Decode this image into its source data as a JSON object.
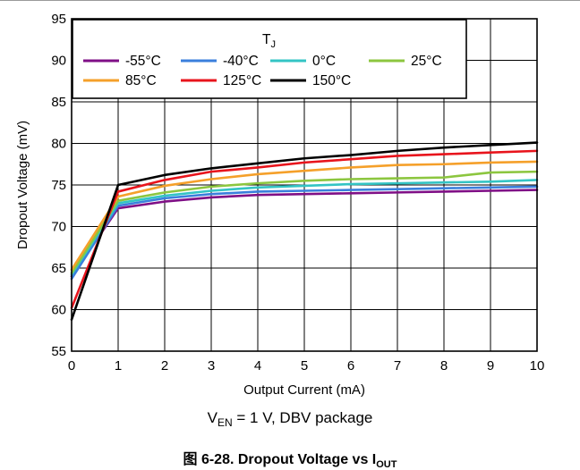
{
  "chart_data": {
    "type": "line",
    "xlabel": "Output Current (mA)",
    "ylabel": "Dropout Voltage (mV)",
    "xlim": [
      0,
      10
    ],
    "ylim": [
      55,
      95
    ],
    "x_ticks": [
      0,
      1,
      2,
      3,
      4,
      5,
      6,
      7,
      8,
      9,
      10
    ],
    "y_ticks": [
      55,
      60,
      65,
      70,
      75,
      80,
      85,
      90,
      95
    ],
    "grid": true,
    "legend": {
      "title_main": "T",
      "title_sub": "J",
      "placement": "top-left, inside plot",
      "columns": 4
    },
    "series": [
      {
        "name": "-55°C",
        "color": "#7f0f86",
        "x": [
          0,
          1,
          2,
          3,
          4,
          5,
          6,
          7,
          8,
          9,
          10
        ],
        "y": [
          64.0,
          72.2,
          73.0,
          73.5,
          73.8,
          73.9,
          74.0,
          74.1,
          74.2,
          74.3,
          74.4
        ]
      },
      {
        "name": "-40°C",
        "color": "#3a7fdc",
        "x": [
          0,
          1,
          2,
          3,
          4,
          5,
          6,
          7,
          8,
          9,
          10
        ],
        "y": [
          63.7,
          72.5,
          73.4,
          73.9,
          74.2,
          74.3,
          74.4,
          74.5,
          74.6,
          74.7,
          74.8
        ]
      },
      {
        "name": "0°C",
        "color": "#33c4c4",
        "x": [
          0,
          1,
          2,
          3,
          4,
          5,
          6,
          7,
          8,
          9,
          10
        ],
        "y": [
          64.2,
          72.8,
          73.7,
          74.3,
          74.7,
          74.9,
          75.1,
          75.2,
          75.3,
          75.4,
          75.6
        ]
      },
      {
        "name": "25°C",
        "color": "#8cc63f",
        "x": [
          0,
          1,
          2,
          3,
          4,
          5,
          6,
          7,
          8,
          9,
          10
        ],
        "y": [
          64.4,
          73.1,
          74.1,
          74.8,
          75.2,
          75.5,
          75.7,
          75.8,
          75.9,
          76.5,
          76.6
        ]
      },
      {
        "name": "85°C",
        "color": "#f5a02a",
        "x": [
          0,
          1,
          2,
          3,
          4,
          5,
          6,
          7,
          8,
          9,
          10
        ],
        "y": [
          64.8,
          73.6,
          74.9,
          75.7,
          76.3,
          76.7,
          77.1,
          77.4,
          77.5,
          77.7,
          77.8
        ]
      },
      {
        "name": "125°C",
        "color": "#e8141c",
        "x": [
          0,
          1,
          2,
          3,
          4,
          5,
          6,
          7,
          8,
          9,
          10
        ],
        "y": [
          60.2,
          74.2,
          75.6,
          76.6,
          77.1,
          77.7,
          78.1,
          78.5,
          78.7,
          78.9,
          79.1
        ]
      },
      {
        "name": "150°C",
        "color": "#000000",
        "x": [
          0,
          1,
          2,
          3,
          4,
          5,
          6,
          7,
          8,
          9,
          10
        ],
        "y": [
          58.8,
          75.0,
          76.2,
          77.0,
          77.6,
          78.2,
          78.6,
          79.1,
          79.5,
          79.8,
          80.1
        ]
      }
    ]
  },
  "condition": {
    "v_main": "V",
    "v_sub": "EN",
    "rest": " = 1 V, DBV package"
  },
  "caption": {
    "prefix": "图 6-28. Dropout Voltage vs I",
    "sub": "OUT"
  }
}
